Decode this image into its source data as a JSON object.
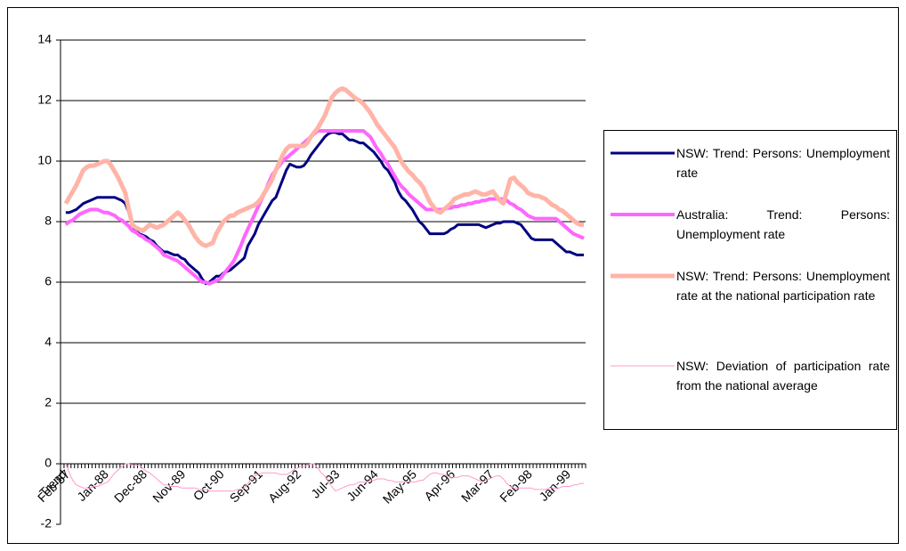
{
  "chart_data": {
    "type": "line",
    "categories": [
      "Trend",
      "Feb-87",
      null,
      null,
      null,
      null,
      null,
      null,
      null,
      null,
      null,
      null,
      "Jan-88",
      null,
      null,
      null,
      null,
      null,
      null,
      null,
      null,
      null,
      null,
      "Dec-88",
      null,
      null,
      null,
      null,
      null,
      null,
      null,
      null,
      null,
      null,
      "Nov-89",
      null,
      null,
      null,
      null,
      null,
      null,
      null,
      null,
      null,
      null,
      "Oct-90",
      null,
      null,
      null,
      null,
      null,
      null,
      null,
      null,
      null,
      null,
      "Sep-91",
      null,
      null,
      null,
      null,
      null,
      null,
      null,
      null,
      null,
      null,
      "Aug-92",
      null,
      null,
      null,
      null,
      null,
      null,
      null,
      null,
      null,
      null,
      "Jul-93",
      null,
      null,
      null,
      null,
      null,
      null,
      null,
      null,
      null,
      null,
      "Jun-94",
      null,
      null,
      null,
      null,
      null,
      null,
      null,
      null,
      null,
      null,
      "May-95",
      null,
      null,
      null,
      null,
      null,
      null,
      null,
      null,
      null,
      null,
      "Apr-96",
      null,
      null,
      null,
      null,
      null,
      null,
      null,
      null,
      null,
      null,
      "Mar-97",
      null,
      null,
      null,
      null,
      null,
      null,
      null,
      null,
      null,
      null,
      "Feb-98",
      null,
      null,
      null,
      null,
      null,
      null,
      null,
      null,
      null,
      null,
      "Jan-99",
      null,
      null,
      null,
      null,
      null
    ],
    "series": [
      {
        "name": "NSW: Trend:    Persons: Unemployment rate",
        "color": "#000080",
        "values": [
          null,
          8.3,
          8.3,
          8.35,
          8.4,
          8.5,
          8.6,
          8.65,
          8.7,
          8.75,
          8.8,
          8.8,
          8.8,
          8.8,
          8.8,
          8.8,
          8.75,
          8.7,
          8.6,
          8.3,
          7.9,
          7.7,
          7.6,
          7.55,
          7.5,
          7.4,
          7.35,
          7.2,
          7.1,
          7.0,
          7.0,
          6.95,
          6.9,
          6.9,
          6.8,
          6.75,
          6.6,
          6.5,
          6.4,
          6.3,
          6.1,
          5.95,
          6.0,
          6.1,
          6.2,
          6.2,
          6.3,
          6.35,
          6.4,
          6.5,
          6.6,
          6.7,
          6.8,
          7.2,
          7.4,
          7.6,
          7.9,
          8.1,
          8.3,
          8.5,
          8.7,
          8.8,
          9.1,
          9.4,
          9.7,
          9.9,
          9.85,
          9.8,
          9.8,
          9.85,
          10.0,
          10.2,
          10.35,
          10.5,
          10.65,
          10.8,
          10.9,
          10.95,
          10.95,
          10.9,
          10.9,
          10.8,
          10.7,
          10.7,
          10.65,
          10.6,
          10.6,
          10.5,
          10.4,
          10.3,
          10.15,
          10.0,
          9.8,
          9.7,
          9.5,
          9.3,
          9.0,
          8.8,
          8.7,
          8.55,
          8.4,
          8.2,
          8.0,
          7.9,
          7.75,
          7.6,
          7.6,
          7.6,
          7.6,
          7.6,
          7.65,
          7.75,
          7.8,
          7.9,
          7.9,
          7.9,
          7.9,
          7.9,
          7.9,
          7.9,
          7.85,
          7.8,
          7.85,
          7.9,
          7.95,
          7.95,
          8.0,
          8.0,
          8.0,
          8.0,
          7.95,
          7.9,
          7.75,
          7.6,
          7.45,
          7.4,
          7.4,
          7.4,
          7.4,
          7.4,
          7.4,
          7.3,
          7.2,
          7.1,
          7.0,
          7.0,
          6.95,
          6.9,
          6.9,
          6.9
        ]
      },
      {
        "name": "Australia: Trend:    Persons: Unemployment rate",
        "color": "#ff66ff",
        "values": [
          null,
          7.9,
          8.0,
          8.05,
          8.15,
          8.25,
          8.3,
          8.35,
          8.4,
          8.4,
          8.4,
          8.35,
          8.3,
          8.3,
          8.25,
          8.2,
          8.1,
          8.05,
          7.95,
          7.85,
          7.7,
          7.65,
          7.55,
          7.5,
          7.4,
          7.35,
          7.25,
          7.15,
          7.05,
          6.9,
          6.85,
          6.8,
          6.75,
          6.7,
          6.6,
          6.5,
          6.4,
          6.3,
          6.2,
          6.1,
          6.0,
          6.0,
          5.95,
          6.0,
          6.05,
          6.1,
          6.25,
          6.4,
          6.55,
          6.7,
          6.95,
          7.2,
          7.5,
          7.75,
          8.0,
          8.25,
          8.5,
          8.75,
          9.0,
          9.3,
          9.55,
          9.7,
          9.85,
          10.0,
          10.1,
          10.2,
          10.3,
          10.4,
          10.5,
          10.6,
          10.7,
          10.8,
          10.9,
          11.0,
          11.0,
          11.0,
          11.0,
          11.0,
          11.0,
          11.0,
          11.0,
          11.0,
          11.0,
          11.0,
          11.0,
          11.0,
          11.0,
          10.9,
          10.8,
          10.6,
          10.4,
          10.25,
          10.05,
          9.9,
          9.7,
          9.5,
          9.3,
          9.15,
          9.05,
          8.9,
          8.8,
          8.7,
          8.6,
          8.5,
          8.4,
          8.4,
          8.4,
          8.4,
          8.4,
          8.4,
          8.45,
          8.45,
          8.5,
          8.5,
          8.55,
          8.55,
          8.6,
          8.6,
          8.65,
          8.65,
          8.7,
          8.7,
          8.75,
          8.75,
          8.75,
          8.75,
          8.75,
          8.7,
          8.6,
          8.55,
          8.45,
          8.4,
          8.3,
          8.2,
          8.15,
          8.1,
          8.1,
          8.1,
          8.1,
          8.1,
          8.1,
          8.1,
          8.0,
          7.9,
          7.8,
          7.7,
          7.6,
          7.55,
          7.5,
          7.45
        ]
      },
      {
        "name": "NSW: Trend:    Persons: Unemployment rate at the national participation rate",
        "color": "#ffb4a8",
        "values": [
          null,
          8.6,
          8.8,
          9.0,
          9.2,
          9.45,
          9.7,
          9.8,
          9.85,
          9.85,
          9.9,
          9.95,
          10.0,
          10.0,
          9.85,
          9.65,
          9.45,
          9.2,
          8.95,
          8.4,
          7.9,
          7.8,
          7.75,
          7.7,
          7.8,
          7.9,
          7.85,
          7.8,
          7.85,
          7.9,
          8.0,
          8.1,
          8.2,
          8.3,
          8.2,
          8.05,
          7.9,
          7.7,
          7.5,
          7.35,
          7.25,
          7.2,
          7.25,
          7.3,
          7.6,
          7.8,
          8.0,
          8.1,
          8.2,
          8.2,
          8.3,
          8.35,
          8.4,
          8.45,
          8.5,
          8.55,
          8.65,
          8.8,
          9.0,
          9.2,
          9.4,
          9.7,
          9.95,
          10.2,
          10.4,
          10.5,
          10.5,
          10.5,
          10.5,
          10.5,
          10.6,
          10.8,
          10.95,
          11.1,
          11.3,
          11.5,
          11.8,
          12.1,
          12.25,
          12.35,
          12.4,
          12.35,
          12.25,
          12.15,
          12.05,
          12.0,
          11.9,
          11.75,
          11.6,
          11.4,
          11.2,
          11.05,
          10.9,
          10.75,
          10.6,
          10.45,
          10.2,
          9.95,
          9.8,
          9.65,
          9.55,
          9.4,
          9.3,
          9.15,
          8.9,
          8.65,
          8.5,
          8.35,
          8.3,
          8.4,
          8.5,
          8.6,
          8.75,
          8.8,
          8.85,
          8.9,
          8.9,
          8.95,
          9.0,
          8.95,
          8.9,
          8.9,
          8.95,
          9.0,
          8.85,
          8.7,
          8.6,
          9.0,
          9.4,
          9.45,
          9.3,
          9.2,
          9.1,
          8.95,
          8.9,
          8.85,
          8.85,
          8.8,
          8.75,
          8.65,
          8.55,
          8.5,
          8.4,
          8.35,
          8.25,
          8.15,
          8.05,
          7.95,
          7.9,
          7.9
        ]
      },
      {
        "name": "NSW: Deviation of participation rate from the national average",
        "color": "#ff99cc",
        "values": [
          null,
          0.0,
          -0.3,
          -0.55,
          -0.7,
          -0.75,
          -0.8,
          -0.8,
          -0.8,
          -0.75,
          -0.75,
          -0.7,
          -0.65,
          -0.6,
          -0.45,
          -0.3,
          -0.2,
          -0.1,
          0.0,
          0.0,
          -0.05,
          -0.05,
          -0.05,
          -0.15,
          -0.25,
          -0.3,
          -0.4,
          -0.5,
          -0.6,
          -0.7,
          -0.7,
          -0.75,
          -0.75,
          -0.75,
          -0.8,
          -0.8,
          -0.8,
          -0.8,
          -0.8,
          -0.85,
          -0.85,
          -0.85,
          -0.9,
          -0.9,
          -0.9,
          -0.9,
          -0.9,
          -0.9,
          -0.9,
          -0.9,
          -0.85,
          -0.85,
          -0.8,
          -0.65,
          -0.5,
          -0.4,
          -0.35,
          -0.3,
          -0.3,
          -0.3,
          -0.3,
          -0.3,
          -0.35,
          -0.35,
          -0.35,
          -0.3,
          -0.2,
          -0.15,
          -0.1,
          -0.1,
          -0.05,
          0.0,
          0.0,
          -0.15,
          -0.3,
          -0.4,
          -0.6,
          -0.75,
          -0.9,
          -0.85,
          -0.8,
          -0.75,
          -0.7,
          -0.7,
          -0.65,
          -0.6,
          -0.6,
          -0.6,
          -0.55,
          -0.55,
          -0.5,
          -0.5,
          -0.5,
          -0.55,
          -0.55,
          -0.6,
          -0.6,
          -0.6,
          -0.6,
          -0.6,
          -0.6,
          -0.6,
          -0.55,
          -0.55,
          -0.45,
          -0.35,
          -0.3,
          -0.3,
          -0.35,
          -0.35,
          -0.4,
          -0.45,
          -0.45,
          -0.45,
          -0.4,
          -0.4,
          -0.4,
          -0.45,
          -0.5,
          -0.55,
          -0.6,
          -0.55,
          -0.5,
          -0.45,
          -0.4,
          -0.4,
          -0.5,
          -0.65,
          -0.75,
          -0.8,
          -0.8,
          -0.8,
          -0.8,
          -0.8,
          -0.8,
          -0.85,
          -0.85,
          -0.85,
          -0.85,
          -0.8,
          -0.8,
          -0.8,
          -0.8,
          -0.75,
          -0.75,
          -0.75,
          -0.7,
          -0.7,
          -0.65,
          -0.65
        ]
      }
    ],
    "ylim": [
      -2,
      14
    ],
    "yticks": [
      -2,
      0,
      2,
      4,
      6,
      8,
      10,
      12,
      14
    ],
    "grid": true,
    "legend": "right"
  }
}
